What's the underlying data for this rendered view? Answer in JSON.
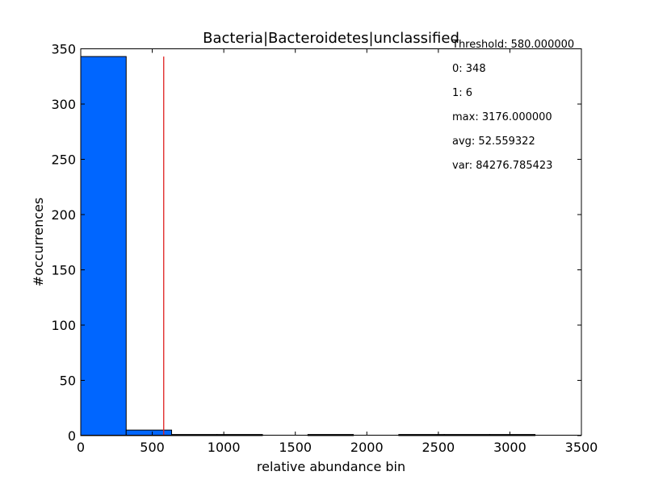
{
  "chart_data": {
    "type": "bar",
    "title": "Bacteria|Bacteroidetes|unclassified",
    "xlabel": "relative abundance bin",
    "ylabel": "#occurrences",
    "xlim": [
      0,
      3500
    ],
    "ylim": [
      0,
      350
    ],
    "xticks": [
      "0",
      "500",
      "1000",
      "1500",
      "2000",
      "2500",
      "3000",
      "3500"
    ],
    "yticks": [
      "0",
      "50",
      "100",
      "150",
      "200",
      "250",
      "300",
      "350"
    ],
    "bins": [
      {
        "start": 0,
        "end": 317.6,
        "count": 343
      },
      {
        "start": 317.6,
        "end": 635.2,
        "count": 5
      },
      {
        "start": 635.2,
        "end": 952.8,
        "count": 1
      },
      {
        "start": 952.8,
        "end": 1270.4,
        "count": 1
      },
      {
        "start": 1270.4,
        "end": 1588.0,
        "count": 0
      },
      {
        "start": 1588.0,
        "end": 1905.6,
        "count": 1
      },
      {
        "start": 1905.6,
        "end": 2223.2,
        "count": 0
      },
      {
        "start": 2223.2,
        "end": 2540.8,
        "count": 1
      },
      {
        "start": 2540.8,
        "end": 2858.4,
        "count": 1
      },
      {
        "start": 2858.4,
        "end": 3176.0,
        "count": 1
      }
    ],
    "threshold": 580,
    "threshold_height": 343,
    "bar_color": "#0066ff",
    "threshold_color": "#e02020",
    "grid": false
  },
  "stats": [
    "Threshold: 580.000000",
    "0: 348",
    "1: 6",
    "max: 3176.000000",
    "avg: 52.559322",
    "var: 84276.785423"
  ]
}
